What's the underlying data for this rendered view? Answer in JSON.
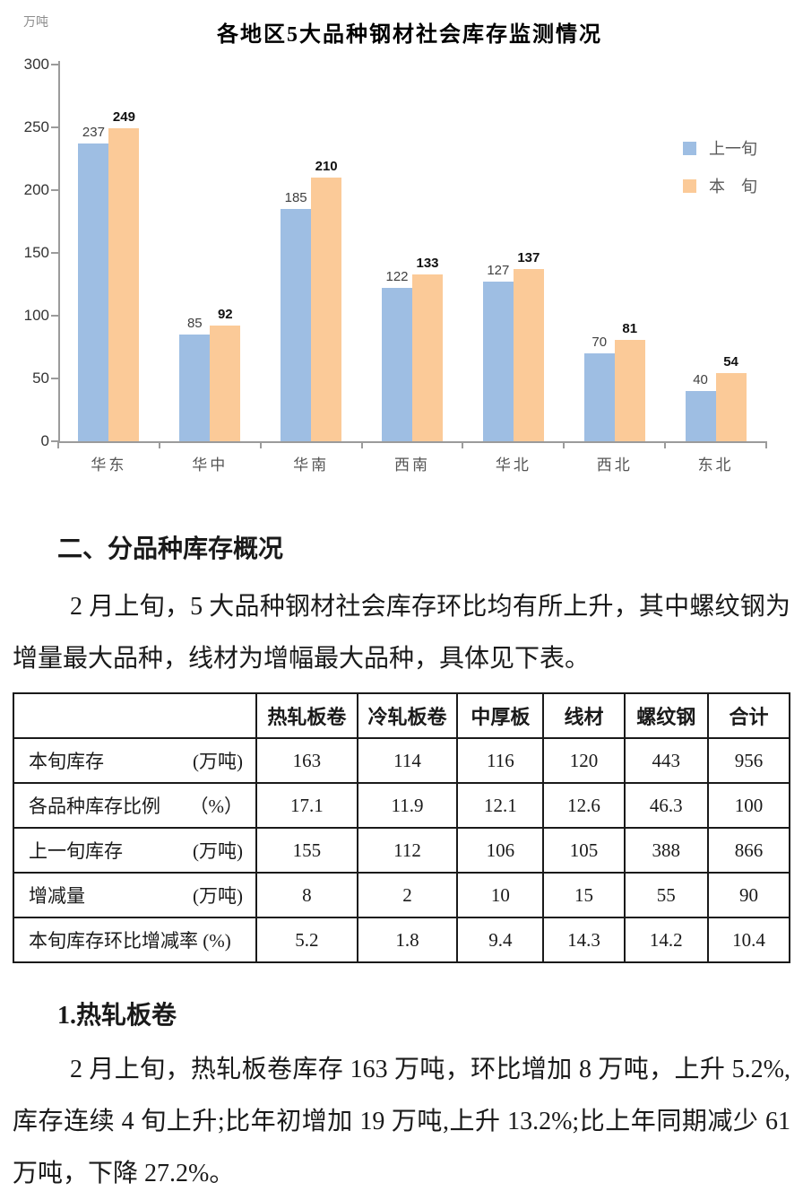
{
  "chart_data": {
    "type": "bar",
    "title": "各地区5大品种钢材社会库存监测情况",
    "ylabel": "万吨",
    "xlabel": "",
    "categories": [
      "华东",
      "华中",
      "华南",
      "西南",
      "华北",
      "西北",
      "东北"
    ],
    "series": [
      {
        "name": "上一旬",
        "color": "#9EBEE3",
        "values": [
          237,
          85,
          185,
          122,
          127,
          70,
          40
        ]
      },
      {
        "name": "本　旬",
        "color": "#FBCA98",
        "values": [
          249,
          92,
          210,
          133,
          137,
          81,
          54
        ]
      }
    ],
    "ylim": [
      0,
      300
    ],
    "y_ticks": [
      0,
      50,
      100,
      150,
      200,
      250,
      300
    ],
    "grid": false,
    "legend_position": "right",
    "label_colors": {
      "series0": "#3f3f3f",
      "series1": "#111111"
    }
  },
  "sections": {
    "heading2": "二、分品种库存概况",
    "para2": "2 月上旬，5 大品种钢材社会库存环比均有所上升，其中螺纹钢为增量最大品种，线材为增幅最大品种，具体见下表。",
    "heading_sub1": "1.热轧板卷",
    "para_sub1": "2 月上旬，热轧板卷库存 163 万吨，环比增加 8 万吨，上升 5.2%,库存连续 4 旬上升;比年初增加 19 万吨,上升 13.2%;比上年同期减少 61 万吨，下降 27.2%。"
  },
  "table": {
    "column_headers": [
      "",
      "热轧板卷",
      "冷轧板卷",
      "中厚板",
      "线材",
      "螺纹钢",
      "合计"
    ],
    "rows": [
      {
        "label": "本旬库存",
        "unit": "(万吨)",
        "values": [
          "163",
          "114",
          "116",
          "120",
          "443",
          "956"
        ]
      },
      {
        "label": "各品种库存比例",
        "unit": "（%）",
        "values": [
          "17.1",
          "11.9",
          "12.1",
          "12.6",
          "46.3",
          "100"
        ]
      },
      {
        "label": "上一旬库存",
        "unit": "(万吨)",
        "values": [
          "155",
          "112",
          "106",
          "105",
          "388",
          "866"
        ]
      },
      {
        "label": "增减量",
        "unit": "(万吨)",
        "values": [
          "8",
          "2",
          "10",
          "15",
          "55",
          "90"
        ]
      },
      {
        "label": "本旬库存环比增减率 (%)",
        "unit": "",
        "values": [
          "5.2",
          "1.8",
          "9.4",
          "14.3",
          "14.2",
          "10.4"
        ]
      }
    ]
  }
}
